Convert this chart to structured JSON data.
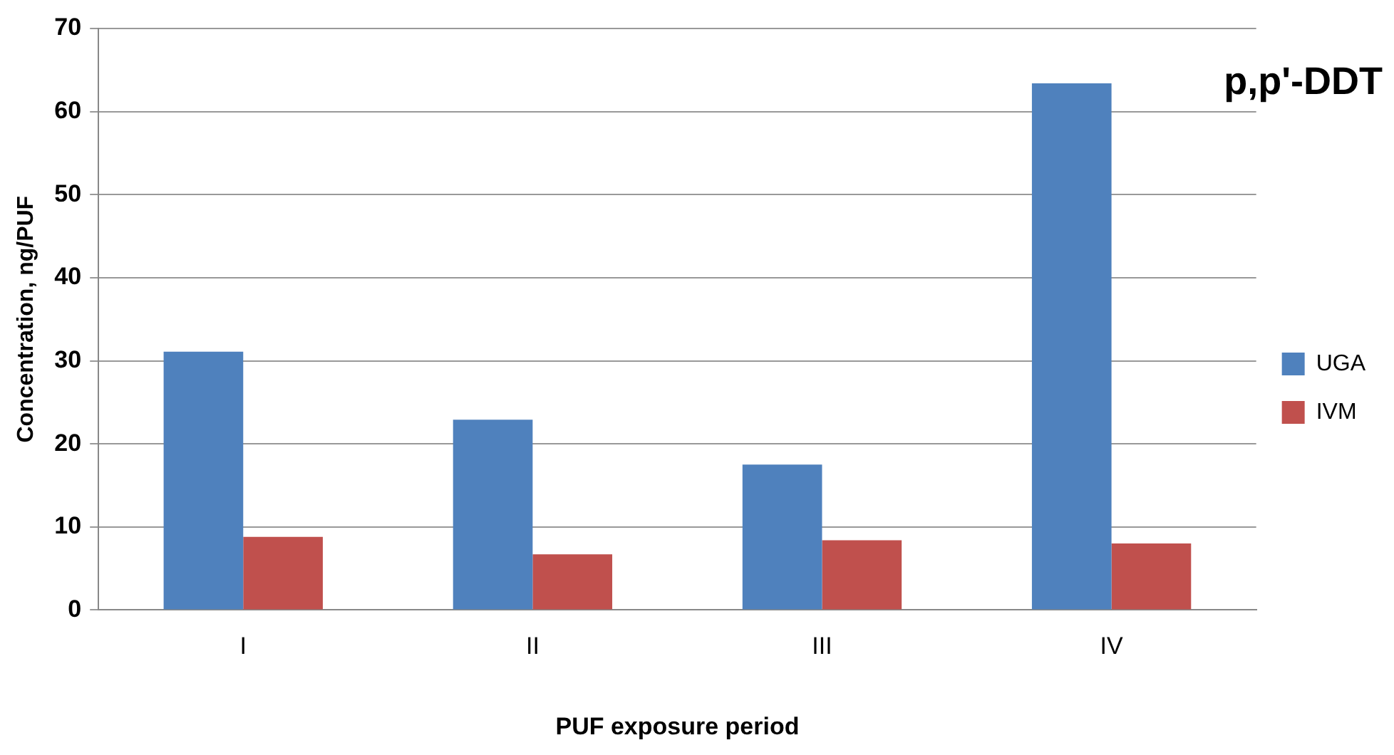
{
  "chart_data": {
    "type": "bar",
    "title": "p,p'-DDT",
    "xlabel": "PUF exposure period",
    "ylabel": "Concentration, ng/PUF",
    "categories": [
      "I",
      "II",
      "III",
      "IV"
    ],
    "series": [
      {
        "name": "UGA",
        "color": "#4f81bd",
        "values": [
          31.1,
          22.9,
          17.5,
          63.4
        ]
      },
      {
        "name": "IVM",
        "color": "#c0504d",
        "values": [
          8.8,
          6.7,
          8.4,
          8.0
        ]
      }
    ],
    "ylim": [
      0,
      70
    ],
    "yticks": [
      0,
      10,
      20,
      30,
      40,
      50,
      60,
      70
    ],
    "grid": "y",
    "legend": "right"
  }
}
